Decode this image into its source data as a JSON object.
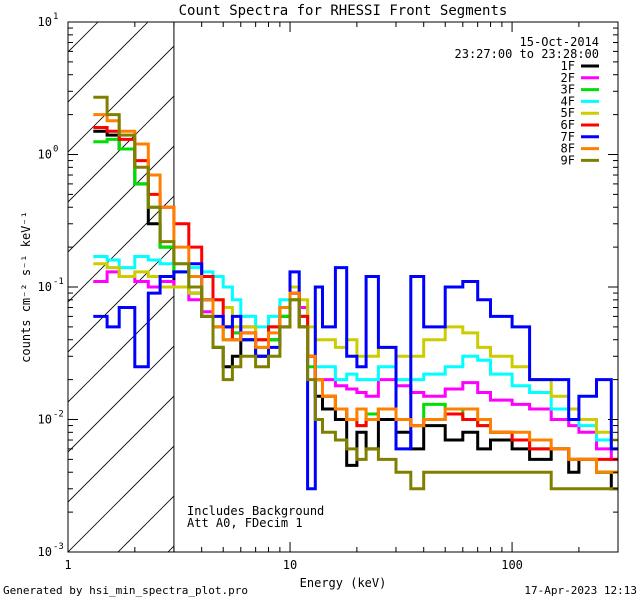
{
  "chart_data": {
    "type": "line",
    "title": "Count Spectra for RHESSI Front Segments",
    "xlabel": "Energy (keV)",
    "ylabel": "counts cm⁻² s⁻¹ keV⁻¹",
    "x_scale": "log",
    "y_scale": "log",
    "xlim": [
      1,
      300
    ],
    "ylim": [
      0.001,
      10
    ],
    "x_ticks": [
      {
        "value": 1,
        "label": "1"
      },
      {
        "value": 10,
        "label": "10"
      },
      {
        "value": 100,
        "label": "100"
      }
    ],
    "y_ticks": [
      {
        "value": 0.001,
        "base": "10",
        "exp": "-3"
      },
      {
        "value": 0.01,
        "base": "10",
        "exp": "-2"
      },
      {
        "value": 0.1,
        "base": "10",
        "exp": "-1"
      },
      {
        "value": 1,
        "base": "10",
        "exp": "0"
      },
      {
        "value": 10,
        "base": "10",
        "exp": "1"
      }
    ],
    "excluded_region": [
      1,
      3
    ],
    "date": "15-Oct-2014",
    "time_range": "23:27:00 to 23:28:00",
    "annotation": [
      "Includes Background",
      "Att A0, FDecim 1"
    ],
    "series": [
      {
        "name": "1F",
        "color": "#000000",
        "x": [
          1.3,
          1.5,
          1.7,
          2,
          2.3,
          2.6,
          3,
          3.5,
          4,
          4.5,
          5,
          5.5,
          6,
          7,
          8,
          9,
          10,
          11,
          12,
          13,
          14,
          16,
          18,
          20,
          22,
          25,
          30,
          35,
          40,
          50,
          60,
          70,
          80,
          100,
          120,
          150,
          180,
          200,
          240,
          280
        ],
        "values": [
          1.5,
          1.4,
          1.1,
          0.6,
          0.3,
          0.2,
          0.1,
          0.09,
          0.06,
          0.035,
          0.025,
          0.03,
          0.04,
          0.03,
          0.04,
          0.06,
          0.09,
          0.06,
          0.03,
          0.015,
          0.012,
          0.01,
          0.0045,
          0.008,
          0.006,
          0.01,
          0.008,
          0.006,
          0.009,
          0.007,
          0.008,
          0.006,
          0.007,
          0.006,
          0.005,
          0.006,
          0.004,
          0.005,
          0.004,
          0.003
        ]
      },
      {
        "name": "2F",
        "color": "#ff00ff",
        "x": [
          1.3,
          1.5,
          1.7,
          2,
          2.3,
          2.6,
          3,
          3.5,
          4,
          4.5,
          5,
          5.5,
          6,
          7,
          8,
          9,
          10,
          11,
          12,
          13,
          14,
          16,
          18,
          20,
          22,
          25,
          30,
          35,
          40,
          50,
          60,
          70,
          80,
          100,
          120,
          150,
          180,
          200,
          240,
          280
        ],
        "values": [
          0.11,
          0.13,
          0.12,
          0.11,
          0.1,
          0.11,
          0.1,
          0.08,
          0.065,
          0.05,
          0.05,
          0.045,
          0.05,
          0.04,
          0.05,
          0.07,
          0.09,
          0.07,
          0.03,
          0.02,
          0.02,
          0.018,
          0.017,
          0.016,
          0.015,
          0.02,
          0.018,
          0.016,
          0.015,
          0.017,
          0.019,
          0.016,
          0.014,
          0.013,
          0.012,
          0.01,
          0.009,
          0.008,
          0.006,
          0.005
        ]
      },
      {
        "name": "3F",
        "color": "#00e000",
        "x": [
          1.3,
          1.5,
          1.7,
          2,
          2.3,
          2.6,
          3,
          3.5,
          4,
          4.5,
          5,
          5.5,
          6,
          7,
          8,
          9,
          10,
          11,
          12,
          13,
          14,
          16,
          18,
          20,
          22,
          25,
          30,
          35,
          40,
          50,
          60,
          70,
          80,
          100,
          120,
          150,
          180,
          200,
          240,
          280
        ],
        "values": [
          1.25,
          1.3,
          1.1,
          0.6,
          0.4,
          0.2,
          0.13,
          0.1,
          0.08,
          0.05,
          0.04,
          0.045,
          0.04,
          0.035,
          0.04,
          0.06,
          0.08,
          0.05,
          0.025,
          0.02,
          0.015,
          0.012,
          0.01,
          0.009,
          0.011,
          0.012,
          0.01,
          0.009,
          0.013,
          0.012,
          0.01,
          0.009,
          0.008,
          0.007,
          0.006,
          0.006,
          0.005,
          0.005,
          0.004,
          0.004
        ]
      },
      {
        "name": "4F",
        "color": "#00ffff",
        "x": [
          1.3,
          1.5,
          1.7,
          2,
          2.3,
          2.6,
          3,
          3.5,
          4,
          4.5,
          5,
          5.5,
          6,
          7,
          8,
          9,
          10,
          11,
          12,
          13,
          14,
          16,
          18,
          20,
          22,
          25,
          30,
          35,
          40,
          50,
          60,
          70,
          80,
          100,
          120,
          150,
          180,
          200,
          240,
          280
        ],
        "values": [
          0.17,
          0.16,
          0.14,
          0.17,
          0.16,
          0.15,
          0.15,
          0.14,
          0.13,
          0.12,
          0.1,
          0.08,
          0.06,
          0.05,
          0.06,
          0.08,
          0.09,
          0.06,
          0.03,
          0.025,
          0.025,
          0.02,
          0.022,
          0.02,
          0.02,
          0.025,
          0.02,
          0.02,
          0.022,
          0.025,
          0.03,
          0.028,
          0.022,
          0.018,
          0.016,
          0.012,
          0.01,
          0.009,
          0.007,
          0.006
        ]
      },
      {
        "name": "5F",
        "color": "#cccc00",
        "x": [
          1.3,
          1.5,
          1.7,
          2,
          2.3,
          2.6,
          3,
          3.5,
          4,
          4.5,
          5,
          5.5,
          6,
          7,
          8,
          9,
          10,
          11,
          12,
          13,
          14,
          16,
          18,
          20,
          22,
          25,
          30,
          35,
          40,
          50,
          60,
          70,
          80,
          100,
          120,
          150,
          180,
          200,
          240,
          280
        ],
        "values": [
          0.15,
          0.14,
          0.12,
          0.13,
          0.12,
          0.1,
          0.1,
          0.09,
          0.08,
          0.08,
          0.07,
          0.05,
          0.05,
          0.04,
          0.05,
          0.07,
          0.1,
          0.08,
          0.05,
          0.04,
          0.04,
          0.035,
          0.04,
          0.03,
          0.03,
          0.035,
          0.03,
          0.03,
          0.04,
          0.05,
          0.045,
          0.035,
          0.03,
          0.025,
          0.02,
          0.015,
          0.012,
          0.01,
          0.008,
          0.007
        ]
      },
      {
        "name": "6F",
        "color": "#ff0000",
        "x": [
          1.3,
          1.5,
          1.7,
          2,
          2.3,
          2.6,
          3,
          3.5,
          4,
          4.5,
          5,
          5.5,
          6,
          7,
          8,
          9,
          10,
          11,
          12,
          13,
          14,
          16,
          18,
          20,
          22,
          25,
          30,
          35,
          40,
          50,
          60,
          70,
          80,
          100,
          120,
          150,
          180,
          200,
          240,
          280
        ],
        "values": [
          1.6,
          1.5,
          1.3,
          0.9,
          0.5,
          0.4,
          0.3,
          0.2,
          0.12,
          0.08,
          0.05,
          0.04,
          0.045,
          0.04,
          0.05,
          0.07,
          0.09,
          0.06,
          0.03,
          0.02,
          0.015,
          0.012,
          0.01,
          0.009,
          0.01,
          0.012,
          0.01,
          0.009,
          0.01,
          0.011,
          0.01,
          0.009,
          0.008,
          0.007,
          0.006,
          0.006,
          0.005,
          0.005,
          0.005,
          0.005
        ]
      },
      {
        "name": "7F",
        "color": "#0000ff",
        "x": [
          1.3,
          1.5,
          1.7,
          2,
          2.3,
          2.6,
          3,
          3.5,
          4,
          4.5,
          5,
          5.5,
          6,
          7,
          8,
          9,
          10,
          11,
          12,
          13,
          14,
          16,
          18,
          20,
          22,
          25,
          30,
          35,
          40,
          50,
          60,
          70,
          80,
          100,
          120,
          150,
          180,
          200,
          240,
          280
        ],
        "values": [
          0.06,
          0.05,
          0.07,
          0.025,
          0.09,
          0.12,
          0.13,
          0.15,
          0.08,
          0.06,
          0.05,
          0.06,
          0.04,
          0.03,
          0.035,
          0.05,
          0.13,
          0.05,
          0.003,
          0.1,
          0.05,
          0.14,
          0.03,
          0.025,
          0.12,
          0.035,
          0.006,
          0.12,
          0.05,
          0.1,
          0.11,
          0.08,
          0.06,
          0.05,
          0.02,
          0.02,
          0.01,
          0.015,
          0.02,
          0.006
        ]
      },
      {
        "name": "8F",
        "color": "#ff8000",
        "x": [
          1.3,
          1.5,
          1.7,
          2,
          2.3,
          2.6,
          3,
          3.5,
          4,
          4.5,
          5,
          5.5,
          6,
          7,
          8,
          9,
          10,
          11,
          12,
          13,
          14,
          16,
          18,
          20,
          22,
          25,
          30,
          35,
          40,
          50,
          60,
          70,
          80,
          100,
          120,
          150,
          180,
          200,
          240,
          280
        ],
        "values": [
          2.0,
          1.8,
          1.5,
          1.2,
          0.7,
          0.4,
          0.2,
          0.12,
          0.08,
          0.05,
          0.04,
          0.04,
          0.045,
          0.035,
          0.045,
          0.07,
          0.09,
          0.05,
          0.03,
          0.02,
          0.015,
          0.012,
          0.01,
          0.012,
          0.01,
          0.012,
          0.01,
          0.009,
          0.01,
          0.012,
          0.012,
          0.01,
          0.008,
          0.008,
          0.007,
          0.006,
          0.005,
          0.005,
          0.004,
          0.004
        ]
      },
      {
        "name": "9F",
        "color": "#808000",
        "x": [
          1.3,
          1.5,
          1.7,
          2,
          2.3,
          2.6,
          3,
          3.5,
          4,
          4.5,
          5,
          5.5,
          6,
          7,
          8,
          9,
          10,
          11,
          12,
          13,
          14,
          16,
          18,
          20,
          22,
          25,
          30,
          35,
          40,
          50,
          60,
          70,
          80,
          100,
          120,
          150,
          180,
          200,
          240,
          280
        ],
        "values": [
          2.7,
          2.0,
          1.4,
          0.8,
          0.4,
          0.22,
          0.15,
          0.1,
          0.06,
          0.035,
          0.02,
          0.025,
          0.03,
          0.025,
          0.03,
          0.05,
          0.08,
          0.05,
          0.02,
          0.01,
          0.008,
          0.007,
          0.006,
          0.005,
          0.006,
          0.005,
          0.004,
          0.003,
          0.004,
          0.004,
          0.004,
          0.004,
          0.004,
          0.004,
          0.004,
          0.003,
          0.003,
          0.003,
          0.003,
          0.003
        ]
      }
    ]
  },
  "footer": {
    "generated_by": "Generated by hsi_min_spectra_plot.pro",
    "date_stamp": "17-Apr-2023 12:13"
  }
}
